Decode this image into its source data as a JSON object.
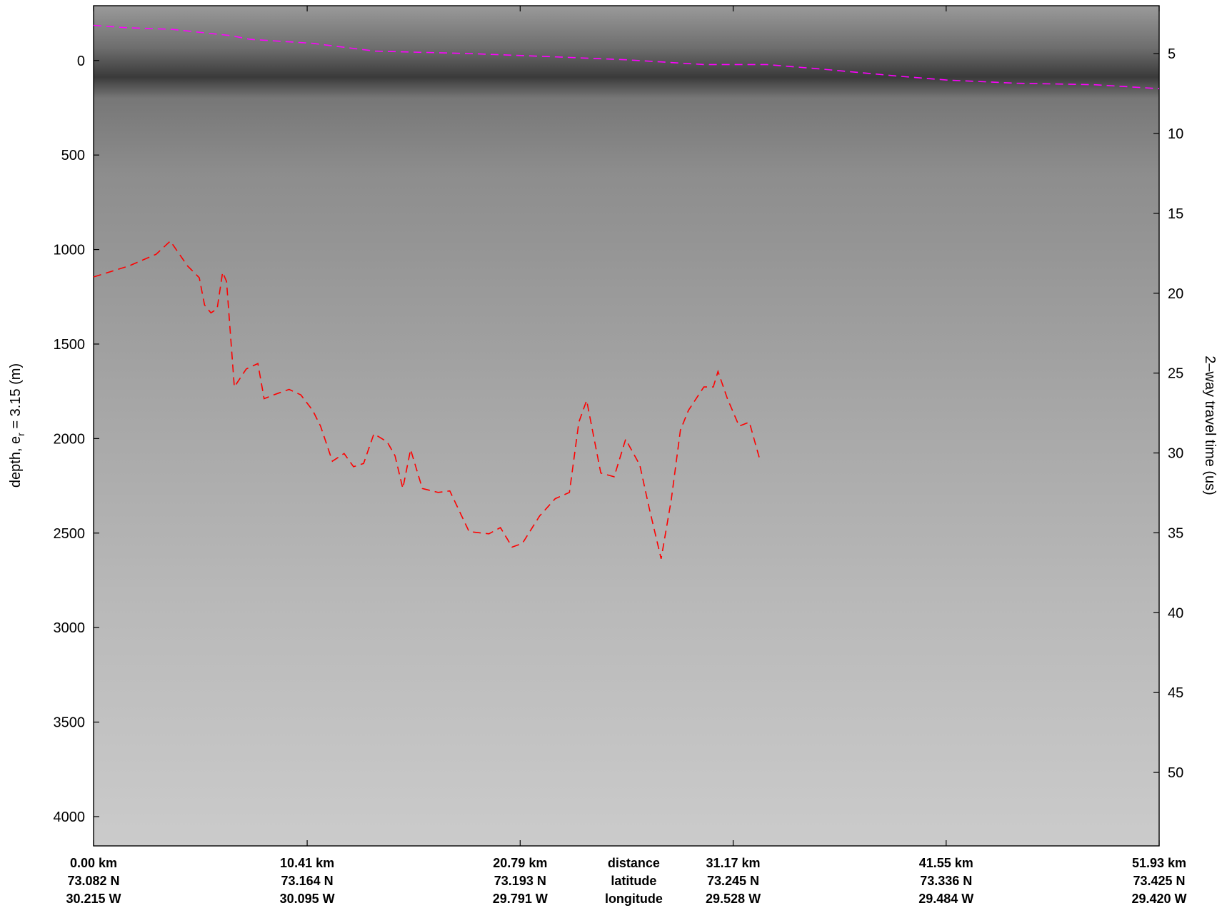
{
  "chart_data": {
    "type": "echogram",
    "y_label": {
      "text": "depth, e",
      "subscript": "r",
      "rest": " = 3.15 (m)"
    },
    "y2_label": "2–way travel time (us)",
    "xlim": [
      0,
      51.93
    ],
    "xticks": [
      {
        "value": 0,
        "label": "0.00 km"
      },
      {
        "value": 10.41,
        "label": "10.41 km"
      },
      {
        "value": 20.79,
        "label": "20.79 km"
      },
      {
        "value": 31.17,
        "label": "31.17 km"
      },
      {
        "value": 41.55,
        "label": "41.55 km"
      },
      {
        "value": 51.93,
        "label": "51.93 km"
      }
    ],
    "latitudes": [
      "73.082 N",
      "73.164 N",
      "73.193 N",
      "73.245 N",
      "73.336 N",
      "73.425 N"
    ],
    "longitudes": [
      "30.215 W",
      "30.095 W",
      "29.791 W",
      "29.528 W",
      "29.484 W",
      "29.420 W"
    ],
    "row_labels": [
      "distance",
      "latitude",
      "longitude"
    ],
    "ylim": [
      -290,
      4155
    ],
    "y_inverted": true,
    "yticks": [
      0,
      500,
      1000,
      1500,
      2000,
      2500,
      3000,
      3500,
      4000
    ],
    "y2lim": [
      2.0,
      54.6
    ],
    "y2ticks": [
      5,
      10,
      15,
      20,
      25,
      30,
      35,
      40,
      45,
      50
    ],
    "series": [
      {
        "color": "#ff00ff",
        "x": [
          0,
          1.53,
          3.81,
          6.67,
          7.63,
          10.68,
          13.72,
          18.3,
          22.11,
          25.93,
          29.74,
          32.79,
          35.46,
          39.27,
          41.56,
          44.99,
          48.8,
          51.93
        ],
        "values": [
          -186,
          -174,
          -165,
          -132,
          -112,
          -91,
          -50,
          -37,
          -21,
          -4,
          21,
          21,
          45,
          83,
          103,
          120,
          128,
          149
        ]
      },
      {
        "color": "#ff0000",
        "x": [
          0,
          1.72,
          3.05,
          3.74,
          4.58,
          5.15,
          5.41,
          5.72,
          6.02,
          6.29,
          6.48,
          6.86,
          7.44,
          8.01,
          8.31,
          8.77,
          9.53,
          10.1,
          10.68,
          11.06,
          11.64,
          12.21,
          12.67,
          13.16,
          13.66,
          14.31,
          14.69,
          15.07,
          15.45,
          16.02,
          16.79,
          17.36,
          18.3,
          19.27,
          19.83,
          20.4,
          20.9,
          21.74,
          22.5,
          23.19,
          23.65,
          24.03,
          24.72,
          25.37,
          25.93,
          26.62,
          27.08,
          27.66,
          28.15,
          28.6,
          28.99,
          29.74,
          30.2,
          30.43,
          30.89,
          31.46,
          31.96,
          32.49
        ],
        "values": [
          1145,
          1087,
          1025,
          955,
          1087,
          1149,
          1293,
          1335,
          1314,
          1120,
          1169,
          1727,
          1632,
          1603,
          1789,
          1769,
          1740,
          1769,
          1851,
          1934,
          2120,
          2079,
          2149,
          2132,
          1975,
          2017,
          2091,
          2264,
          2058,
          2264,
          2285,
          2277,
          2492,
          2504,
          2471,
          2574,
          2554,
          2409,
          2318,
          2285,
          1913,
          1798,
          2182,
          2202,
          2004,
          2140,
          2368,
          2636,
          2326,
          1955,
          1851,
          1727,
          1727,
          1645,
          1789,
          1934,
          1913,
          2120
        ]
      }
    ]
  }
}
